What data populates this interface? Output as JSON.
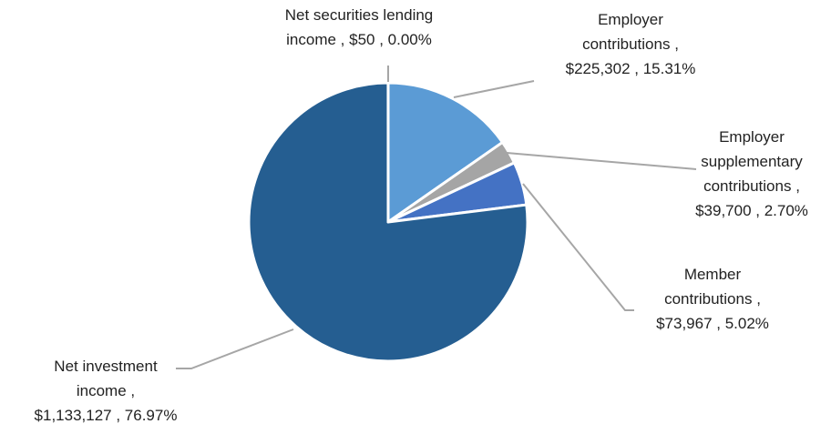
{
  "chart_data": {
    "type": "pie",
    "slices": [
      {
        "name": "Employer contributions",
        "value": 225302,
        "percent": 15.31,
        "color": "#5b9bd5",
        "label_lines": [
          "Employer",
          "contributions ,",
          "$225,302 , 15.31%"
        ]
      },
      {
        "name": "Employer supplementary contributions",
        "value": 39700,
        "percent": 2.7,
        "color": "#a5a5a5",
        "label_lines": [
          "Employer",
          "supplementary",
          "contributions ,",
          "$39,700 , 2.70%"
        ]
      },
      {
        "name": "Member contributions",
        "value": 73967,
        "percent": 5.02,
        "color": "#4472c4",
        "label_lines": [
          "Member",
          "contributions ,",
          "$73,967 , 5.02%"
        ]
      },
      {
        "name": "Net investment income",
        "value": 1133127,
        "percent": 76.97,
        "color": "#255e91",
        "label_lines": [
          "Net investment",
          "income ,",
          "$1,133,127 , 76.97%"
        ]
      },
      {
        "name": "Net securities lending income",
        "value": 50,
        "percent": 0.0,
        "color": "#264478",
        "label_lines": [
          "Net securities lending",
          "income ,  $50 , 0.00%"
        ]
      }
    ],
    "leader_line_color": "#a6a6a6"
  }
}
